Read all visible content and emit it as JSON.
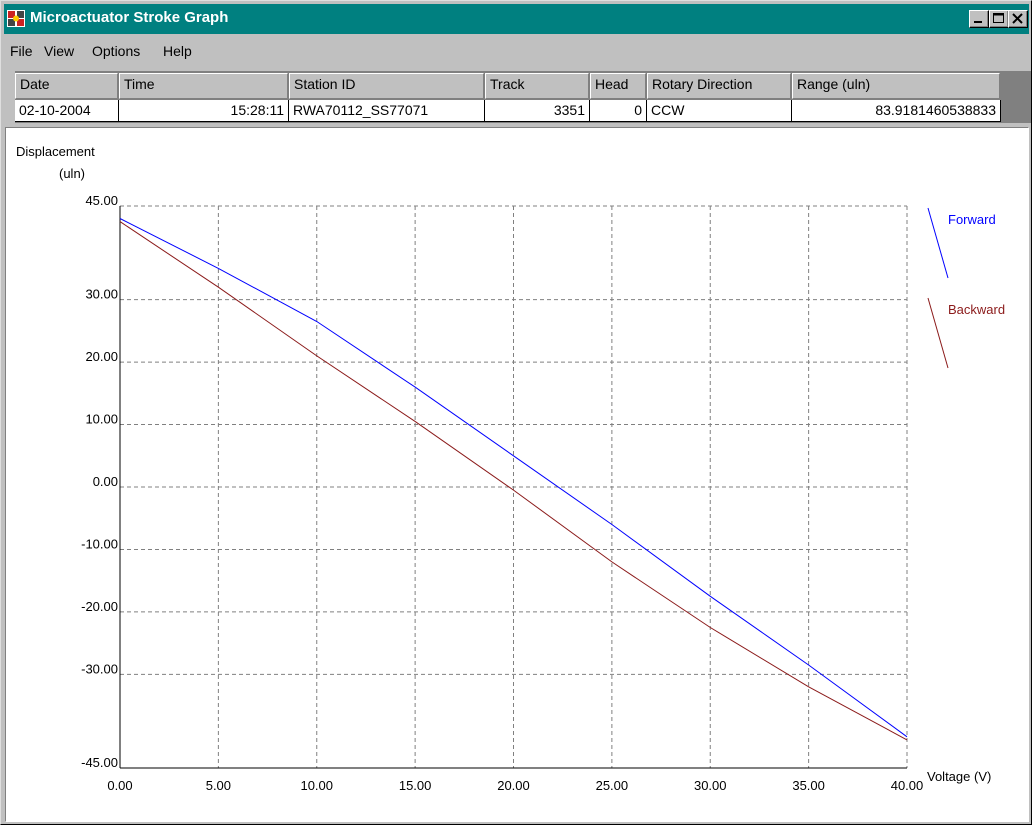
{
  "window": {
    "title": "Microactuator Stroke Graph"
  },
  "menu": [
    "File",
    "View",
    "Options",
    "Help"
  ],
  "record": {
    "columns": [
      "Date",
      "Time",
      "Station ID",
      "Track",
      "Head",
      "Rotary Direction",
      "Range (uln)"
    ],
    "values": [
      "02-10-2004",
      "15:28:11",
      "RWA70112_SS77071",
      "3351",
      "0",
      "CCW",
      "83.9181460538833"
    ]
  },
  "icons": {
    "app": "app-icon",
    "minimize": "minimize-icon",
    "maximize": "maximize-icon",
    "close": "close-icon"
  },
  "colors": {
    "titlebar": "#008080",
    "forward": "#0000ff",
    "backward": "#8b1a1a"
  },
  "chart_data": {
    "type": "line",
    "ylabel_line1": "Displacement",
    "ylabel_line2": "(uln)",
    "xlabel": "Voltage (V)",
    "grid": true,
    "legend_position": "right",
    "xlim": [
      0,
      40
    ],
    "ylim": [
      -45,
      45
    ],
    "x_ticks": [
      0,
      5,
      10,
      15,
      20,
      25,
      30,
      35,
      40
    ],
    "x_tick_labels": [
      "0.00",
      "5.00",
      "10.00",
      "15.00",
      "20.00",
      "25.00",
      "30.00",
      "35.00",
      "40.00"
    ],
    "y_ticks": [
      45,
      30,
      20,
      10,
      0,
      -10,
      -20,
      -30,
      -45
    ],
    "y_tick_labels": [
      "45.00",
      "30.00",
      "20.00",
      "10.00",
      "0.00",
      "-10.00",
      "-20.00",
      "-30.00",
      "-45.00"
    ],
    "series": [
      {
        "name": "Forward",
        "color": "#0000ff",
        "x": [
          0,
          5,
          10,
          15,
          20,
          25,
          30,
          35,
          40
        ],
        "y": [
          43.0,
          35.0,
          26.5,
          16.0,
          5.0,
          -6.0,
          -17.5,
          -28.5,
          -40.0
        ]
      },
      {
        "name": "Backward",
        "color": "#8b1a1a",
        "x": [
          0,
          5,
          10,
          15,
          20,
          25,
          30,
          35,
          40
        ],
        "y": [
          42.5,
          32.0,
          21.0,
          10.5,
          -0.5,
          -12.0,
          -22.5,
          -32.0,
          -40.5
        ]
      }
    ]
  }
}
